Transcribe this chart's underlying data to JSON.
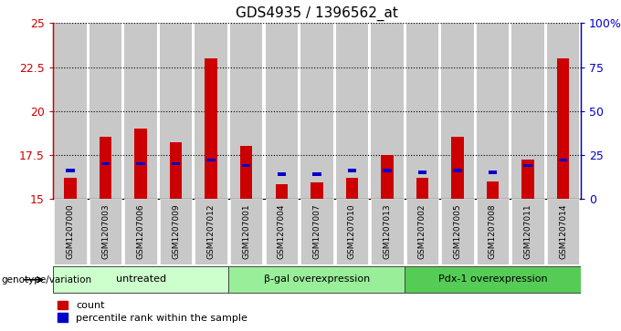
{
  "title": "GDS4935 / 1396562_at",
  "samples": [
    "GSM1207000",
    "GSM1207003",
    "GSM1207006",
    "GSM1207009",
    "GSM1207012",
    "GSM1207001",
    "GSM1207004",
    "GSM1207007",
    "GSM1207010",
    "GSM1207013",
    "GSM1207002",
    "GSM1207005",
    "GSM1207008",
    "GSM1207011",
    "GSM1207014"
  ],
  "count_values": [
    16.2,
    18.5,
    19.0,
    18.2,
    23.0,
    18.0,
    15.8,
    15.9,
    16.2,
    17.5,
    16.2,
    18.5,
    16.0,
    17.2,
    23.0
  ],
  "percentile_values": [
    16.5,
    16.9,
    16.9,
    16.9,
    17.1,
    16.8,
    16.3,
    16.3,
    16.5,
    16.5,
    16.4,
    16.5,
    16.4,
    16.8,
    17.1
  ],
  "baseline": 15.0,
  "ylim_left": [
    15.0,
    25.0
  ],
  "yticks_left": [
    15.0,
    17.5,
    20.0,
    22.5,
    25.0
  ],
  "yticks_right": [
    0,
    25,
    50,
    75,
    100
  ],
  "groups": [
    {
      "label": "untreated",
      "start": 0,
      "end": 5,
      "color": "#ccffcc"
    },
    {
      "label": "β-gal overexpression",
      "start": 5,
      "end": 10,
      "color": "#99ee99"
    },
    {
      "label": "Pdx-1 overexpression",
      "start": 10,
      "end": 15,
      "color": "#55cc55"
    }
  ],
  "bar_color": "#cc0000",
  "percentile_color": "#0000cc",
  "bar_width": 0.35,
  "bar_bg_color": "#c8c8c8",
  "legend_count_label": "count",
  "legend_percentile_label": "percentile rank within the sample",
  "genotype_label": "genotype/variation",
  "background_color": "#ffffff"
}
